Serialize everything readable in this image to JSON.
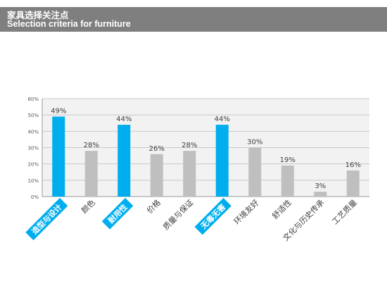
{
  "header": {
    "title_cn": "家具选择关注点",
    "title_en": "Selection criteria for furniture"
  },
  "colors": {
    "header_bg": "#7f7f7f",
    "highlight": "#00aeef",
    "bar_default": "#bfbfbf",
    "plot_bg": "#f2f2f2",
    "grid": "#c9c9c9"
  },
  "chart_data": {
    "type": "bar",
    "categories": [
      "造型与设计",
      "颜色",
      "耐用性",
      "价格",
      "质量与保证",
      "无毒无害",
      "环境友好",
      "舒适性",
      "文化与历史传承",
      "工艺质量"
    ],
    "values": [
      49,
      28,
      44,
      26,
      28,
      44,
      30,
      19,
      3,
      16
    ],
    "data_labels": [
      "49%",
      "28%",
      "44%",
      "26%",
      "28%",
      "44%",
      "30%",
      "19%",
      "3%",
      "16%"
    ],
    "highlighted": [
      true,
      false,
      true,
      false,
      false,
      true,
      false,
      false,
      false,
      false
    ],
    "ylim": [
      0,
      60
    ],
    "yticks": [
      0,
      10,
      20,
      30,
      40,
      50,
      60
    ],
    "ytick_labels": [
      "0%",
      "10%",
      "20%",
      "30%",
      "40%",
      "50%",
      "60%"
    ],
    "grid": true,
    "title": "",
    "xlabel": "",
    "ylabel": ""
  }
}
